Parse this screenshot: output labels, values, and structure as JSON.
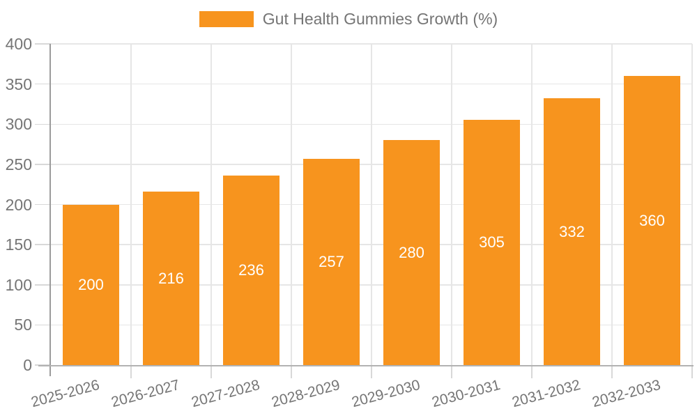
{
  "legend": {
    "label": "Gut Health Gummies Growth (%)",
    "swatch_color": "#F7941E"
  },
  "chart_data": {
    "type": "bar",
    "title": "Gut Health Gummies Growth (%)",
    "categories": [
      "2025-2026",
      "2026-2027",
      "2027-2028",
      "2028-2029",
      "2029-2030",
      "2030-2031",
      "2031-2032",
      "2032-2033"
    ],
    "values": [
      200,
      216,
      236,
      257,
      280,
      305,
      332,
      360
    ],
    "series": [
      {
        "name": "Gut Health Gummies Growth (%)",
        "values": [
          200,
          216,
          236,
          257,
          280,
          305,
          332,
          360
        ]
      }
    ],
    "xlabel": "",
    "ylabel": "",
    "ylim": [
      0,
      400
    ],
    "yticks": [
      0,
      50,
      100,
      150,
      200,
      250,
      300,
      350,
      400
    ],
    "grid": true,
    "bar_labels_visible": true,
    "legend_position": "top-center",
    "colors": {
      "bar": "#F7941E",
      "bar_label": "#FFFFFF",
      "axis_text": "#757575",
      "gridline": "#E6E6E6",
      "y_axis_line": "#9B9B9B",
      "x_axis_line": "#B2B2B2"
    }
  }
}
